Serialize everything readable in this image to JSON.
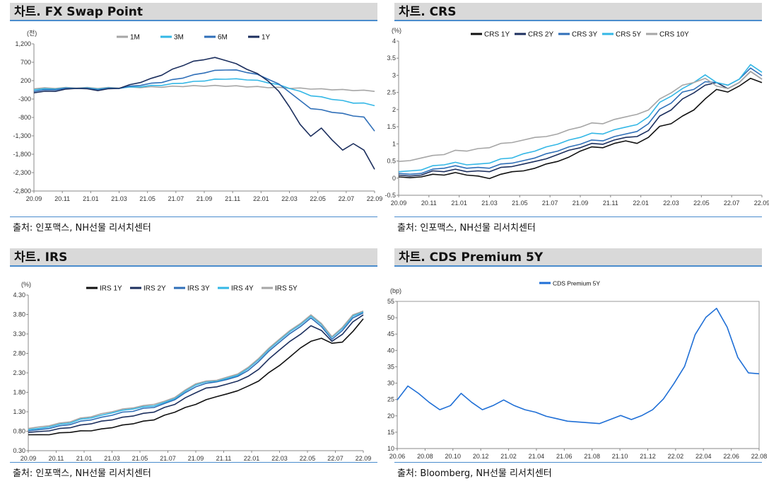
{
  "panels": [
    {
      "header": "차트. FX Swap Point",
      "source": "출처: 인포맥스, NH선물 리서치센터",
      "unit": "(전)",
      "chart_data": {
        "type": "line",
        "ylim": [
          -2800,
          1200
        ],
        "yticks": [
          "1,200",
          "700",
          "200",
          "-300",
          "-800",
          "-1,300",
          "-1,800",
          "-2,300",
          "-2,800"
        ],
        "ytick_values": [
          1200,
          700,
          200,
          -300,
          -800,
          -1300,
          -1800,
          -2300,
          -2800
        ],
        "x_ticks": [
          "20.09",
          "20.11",
          "21.01",
          "21.03",
          "21.05",
          "21.07",
          "21.09",
          "21.11",
          "22.01",
          "22.03",
          "22.05",
          "22.07",
          "22.09"
        ],
        "legend": "top-center",
        "series": [
          {
            "name": "1M",
            "color": "#a6a6a6",
            "values": [
              -10,
              -5,
              0,
              5,
              10,
              5,
              0,
              5,
              10,
              15,
              20,
              25,
              30,
              40,
              50,
              55,
              60,
              60,
              55,
              50,
              40,
              30,
              20,
              10,
              0,
              -10,
              -20,
              -30,
              -40,
              -50,
              -60,
              -70,
              -80
            ]
          },
          {
            "name": "3M",
            "color": "#33b7e6",
            "values": [
              -40,
              -30,
              -20,
              -10,
              0,
              -10,
              -20,
              -10,
              0,
              20,
              40,
              60,
              80,
              110,
              140,
              170,
              200,
              230,
              250,
              240,
              230,
              200,
              150,
              80,
              0,
              -100,
              -200,
              -250,
              -300,
              -350,
              -400,
              -420,
              -470
            ]
          },
          {
            "name": "6M",
            "color": "#2f6fb8",
            "values": [
              -80,
              -60,
              -40,
              -20,
              0,
              -20,
              -40,
              -20,
              0,
              40,
              80,
              120,
              160,
              220,
              280,
              350,
              420,
              470,
              500,
              480,
              430,
              360,
              250,
              100,
              -100,
              -350,
              -550,
              -600,
              -650,
              -700,
              -750,
              -800,
              -1160
            ]
          },
          {
            "name": "1Y",
            "color": "#1c2f5e",
            "values": [
              -120,
              -100,
              -80,
              -40,
              0,
              -30,
              -60,
              -30,
              0,
              80,
              160,
              250,
              360,
              500,
              620,
              720,
              780,
              820,
              760,
              650,
              520,
              380,
              200,
              -100,
              -500,
              -1000,
              -1300,
              -1100,
              -1400,
              -1700,
              -1500,
              -1700,
              -2200
            ]
          }
        ]
      }
    },
    {
      "header": "차트. CRS",
      "source": "출처: 인포맥스, NH선물 리서치센터",
      "unit": "(%)",
      "chart_data": {
        "type": "line",
        "ylim": [
          -0.5,
          4
        ],
        "yticks": [
          "4",
          "3.5",
          "3",
          "2.5",
          "2",
          "1.5",
          "1",
          "0.5",
          "0",
          "-0.5"
        ],
        "ytick_values": [
          4,
          3.5,
          3,
          2.5,
          2,
          1.5,
          1,
          0.5,
          0,
          -0.5
        ],
        "x_ticks": [
          "20.09",
          "20.11",
          "21.01",
          "21.03",
          "21.05",
          "21.07",
          "21.09",
          "21.11",
          "22.01",
          "22.03",
          "22.05",
          "22.07",
          "22.09"
        ],
        "legend": "top-center",
        "series": [
          {
            "name": "CRS 1Y",
            "color": "#111111",
            "values": [
              0.05,
              0.0,
              0.05,
              0.1,
              0.1,
              0.15,
              0.1,
              0.05,
              0.0,
              0.1,
              0.2,
              0.2,
              0.3,
              0.4,
              0.5,
              0.6,
              0.8,
              0.9,
              0.9,
              1.0,
              1.1,
              1.0,
              1.2,
              1.5,
              1.6,
              1.8,
              2.0,
              2.3,
              2.6,
              2.5,
              2.7,
              2.9,
              2.8
            ]
          },
          {
            "name": "CRS 2Y",
            "color": "#1c2f5e",
            "values": [
              0.1,
              0.05,
              0.1,
              0.2,
              0.2,
              0.25,
              0.2,
              0.2,
              0.2,
              0.3,
              0.35,
              0.4,
              0.5,
              0.55,
              0.7,
              0.8,
              0.9,
              1.0,
              1.0,
              1.1,
              1.2,
              1.2,
              1.4,
              1.8,
              2.0,
              2.3,
              2.5,
              2.7,
              2.8,
              2.6,
              2.8,
              3.1,
              2.9
            ]
          },
          {
            "name": "CRS 3Y",
            "color": "#2f6fb8",
            "values": [
              0.15,
              0.1,
              0.15,
              0.25,
              0.3,
              0.35,
              0.3,
              0.3,
              0.3,
              0.4,
              0.45,
              0.5,
              0.6,
              0.7,
              0.8,
              0.9,
              1.0,
              1.1,
              1.1,
              1.2,
              1.3,
              1.35,
              1.6,
              2.0,
              2.2,
              2.5,
              2.6,
              2.8,
              2.8,
              2.7,
              2.9,
              3.2,
              3.0
            ]
          },
          {
            "name": "CRS 5Y",
            "color": "#33b7e6",
            "values": [
              0.2,
              0.2,
              0.25,
              0.35,
              0.4,
              0.45,
              0.4,
              0.4,
              0.45,
              0.55,
              0.6,
              0.7,
              0.8,
              0.9,
              1.0,
              1.1,
              1.2,
              1.3,
              1.3,
              1.4,
              1.5,
              1.55,
              1.8,
              2.2,
              2.4,
              2.6,
              2.8,
              3.0,
              2.8,
              2.7,
              2.9,
              3.3,
              3.1
            ]
          },
          {
            "name": "CRS 10Y",
            "color": "#a6a6a6",
            "values": [
              0.5,
              0.5,
              0.6,
              0.65,
              0.7,
              0.8,
              0.8,
              0.85,
              0.9,
              1.0,
              1.05,
              1.1,
              1.2,
              1.2,
              1.3,
              1.4,
              1.5,
              1.6,
              1.6,
              1.7,
              1.8,
              1.85,
              2.0,
              2.3,
              2.5,
              2.7,
              2.8,
              2.9,
              2.7,
              2.6,
              2.8,
              3.1,
              2.9
            ]
          }
        ]
      }
    },
    {
      "header": "차트. IRS",
      "source": "출처: 인포맥스, NH선물 리서치센터",
      "unit": "(%)",
      "chart_data": {
        "type": "line",
        "ylim": [
          0.3,
          4.3
        ],
        "yticks": [
          "4.30",
          "3.80",
          "3.30",
          "2.80",
          "2.30",
          "1.80",
          "1.30",
          "0.80",
          "0.30"
        ],
        "ytick_values": [
          4.3,
          3.8,
          3.3,
          2.8,
          2.3,
          1.8,
          1.3,
          0.8,
          0.3
        ],
        "x_ticks": [
          "20.09",
          "20.11",
          "21.01",
          "21.03",
          "21.05",
          "21.07",
          "21.09",
          "21.11",
          "22.01",
          "22.03",
          "22.05",
          "22.07",
          "22.09"
        ],
        "legend": "top-center",
        "series": [
          {
            "name": "IRS 1Y",
            "color": "#111111",
            "values": [
              0.72,
              0.7,
              0.72,
              0.75,
              0.78,
              0.8,
              0.82,
              0.85,
              0.9,
              0.95,
              1.0,
              1.05,
              1.1,
              1.2,
              1.3,
              1.4,
              1.5,
              1.6,
              1.7,
              1.75,
              1.85,
              1.95,
              2.1,
              2.3,
              2.5,
              2.7,
              2.95,
              3.1,
              3.2,
              3.05,
              3.1,
              3.35,
              3.7
            ]
          },
          {
            "name": "IRS 2Y",
            "color": "#1c2f5e",
            "values": [
              0.78,
              0.78,
              0.82,
              0.86,
              0.9,
              0.95,
              1.0,
              1.05,
              1.1,
              1.15,
              1.2,
              1.25,
              1.3,
              1.4,
              1.5,
              1.65,
              1.8,
              1.9,
              1.95,
              2.0,
              2.1,
              2.2,
              2.4,
              2.65,
              2.9,
              3.1,
              3.3,
              3.5,
              3.4,
              3.1,
              3.3,
              3.6,
              3.8
            ]
          },
          {
            "name": "IRS 3Y",
            "color": "#2f6fb8",
            "values": [
              0.82,
              0.83,
              0.88,
              0.93,
              0.98,
              1.05,
              1.1,
              1.15,
              1.22,
              1.28,
              1.32,
              1.38,
              1.42,
              1.5,
              1.62,
              1.78,
              1.95,
              2.02,
              2.08,
              2.12,
              2.22,
              2.35,
              2.6,
              2.85,
              3.1,
              3.3,
              3.5,
              3.7,
              3.5,
              3.15,
              3.4,
              3.7,
              3.85
            ]
          },
          {
            "name": "IRS 4Y",
            "color": "#33b7e6",
            "values": [
              0.85,
              0.86,
              0.92,
              0.97,
              1.02,
              1.1,
              1.15,
              1.2,
              1.28,
              1.33,
              1.38,
              1.42,
              1.46,
              1.53,
              1.65,
              1.82,
              2.0,
              2.06,
              2.1,
              2.15,
              2.25,
              2.4,
              2.65,
              2.9,
              3.15,
              3.35,
              3.55,
              3.75,
              3.55,
              3.2,
              3.45,
              3.75,
              3.88
            ]
          },
          {
            "name": "IRS 5Y",
            "color": "#a6a6a6",
            "values": [
              0.88,
              0.9,
              0.95,
              1.0,
              1.05,
              1.13,
              1.18,
              1.24,
              1.31,
              1.36,
              1.41,
              1.45,
              1.5,
              1.56,
              1.68,
              1.85,
              2.03,
              2.08,
              2.12,
              2.18,
              2.28,
              2.43,
              2.68,
              2.93,
              3.18,
              3.38,
              3.58,
              3.78,
              3.58,
              3.22,
              3.48,
              3.78,
              3.9
            ]
          }
        ]
      }
    },
    {
      "header": "차트. CDS Premium 5Y",
      "source": "출처: Bloomberg, NH선물 리서치센터",
      "unit": "(bp)",
      "chart_data": {
        "type": "line",
        "ylim": [
          10,
          55
        ],
        "yticks": [
          "55",
          "50",
          "45",
          "40",
          "35",
          "30",
          "25",
          "20",
          "15",
          "10"
        ],
        "ytick_values": [
          55,
          50,
          45,
          40,
          35,
          30,
          25,
          20,
          15,
          10
        ],
        "x_ticks": [
          "20.06",
          "20.08",
          "20.10",
          "20.12",
          "21.02",
          "21.04",
          "21.06",
          "21.08",
          "21.10",
          "21.12",
          "22.02",
          "22.04",
          "22.06",
          "22.08"
        ],
        "legend": "top-center",
        "series": [
          {
            "name": "CDS Premium 5Y",
            "color": "#1f6fd6",
            "values": [
              25,
              29,
              27,
              24,
              22,
              23,
              27,
              24,
              22,
              23,
              25,
              23,
              22,
              21,
              20,
              19,
              18.5,
              18,
              18,
              17.5,
              19,
              20,
              19,
              20,
              22,
              25,
              30,
              35,
              45,
              50,
              53,
              47,
              38,
              33,
              33
            ]
          }
        ]
      }
    }
  ]
}
